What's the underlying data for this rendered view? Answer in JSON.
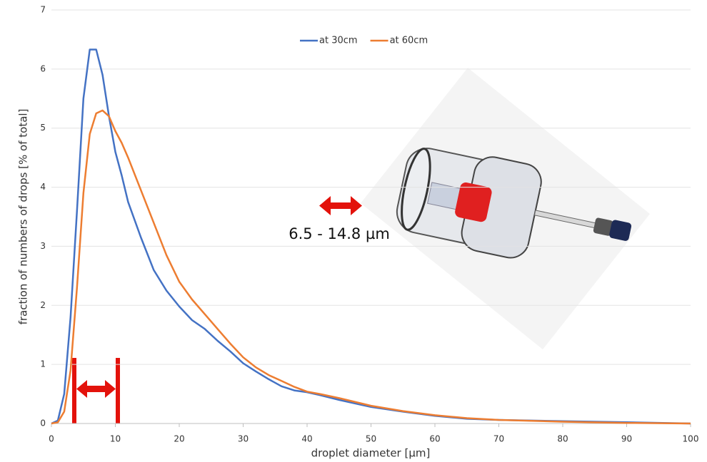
{
  "chart_data": {
    "type": "line",
    "xlabel": "droplet diameter [µm]",
    "ylabel": "fraction of numbers of drops [% of total]",
    "annotation": "6.5 - 14.8 µm",
    "x": [
      0,
      1,
      2,
      3,
      4,
      5,
      6,
      7,
      8,
      9,
      10,
      11,
      12,
      14,
      16,
      18,
      20,
      22,
      24,
      26,
      28,
      30,
      32,
      34,
      36,
      38,
      40,
      42,
      45,
      50,
      55,
      60,
      65,
      70,
      80,
      90,
      100
    ],
    "series": [
      {
        "name": "at 30cm",
        "color": "#4472c4",
        "values": [
          0,
          0.05,
          0.5,
          1.8,
          3.6,
          5.5,
          6.33,
          6.33,
          5.9,
          5.2,
          4.6,
          4.2,
          3.75,
          3.15,
          2.6,
          2.25,
          1.98,
          1.75,
          1.6,
          1.4,
          1.22,
          1.02,
          0.88,
          0.75,
          0.63,
          0.56,
          0.53,
          0.48,
          0.4,
          0.28,
          0.2,
          0.13,
          0.08,
          0.06,
          0.04,
          0.02,
          0
        ]
      },
      {
        "name": "at 60cm",
        "color": "#ed7d31",
        "values": [
          0,
          0.02,
          0.2,
          0.9,
          2.3,
          3.9,
          4.9,
          5.25,
          5.3,
          5.2,
          4.95,
          4.75,
          4.5,
          3.95,
          3.4,
          2.85,
          2.4,
          2.1,
          1.85,
          1.6,
          1.35,
          1.12,
          0.95,
          0.82,
          0.72,
          0.62,
          0.54,
          0.5,
          0.43,
          0.3,
          0.21,
          0.14,
          0.09,
          0.06,
          0.03,
          0.01,
          0
        ]
      }
    ],
    "xlim": [
      0,
      100
    ],
    "xticks": [
      0,
      10,
      20,
      30,
      40,
      50,
      60,
      70,
      80,
      90,
      100
    ],
    "ylim": [
      0,
      7
    ],
    "yticks": [
      0,
      1,
      2,
      3,
      4,
      5,
      6,
      7
    ],
    "grid": true,
    "legend": "top"
  }
}
